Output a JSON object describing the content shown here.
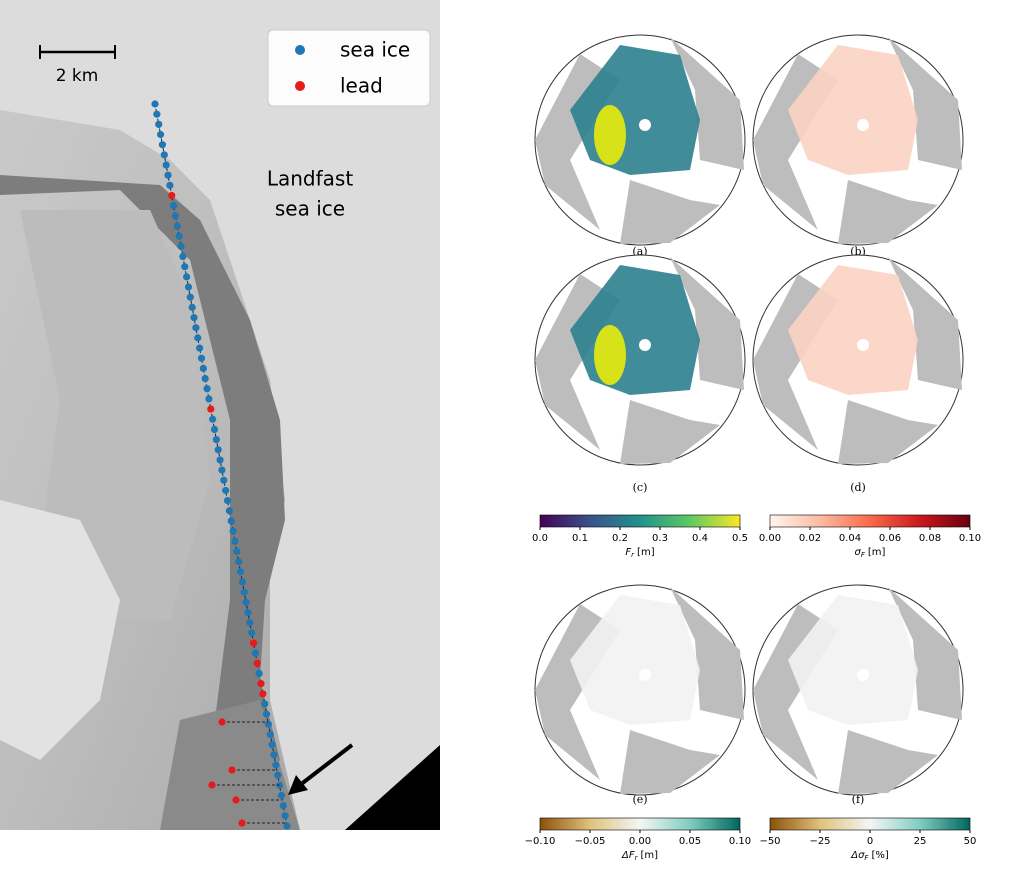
{
  "image_panel": {
    "scale_label": "2 km",
    "legend": [
      "sea ice",
      "lead"
    ],
    "annotation": [
      "Landfast",
      "sea ice"
    ]
  },
  "maps": {
    "panel_labels": [
      "(a)",
      "(b)",
      "(c)",
      "(d)",
      "(e)",
      "(f)"
    ]
  },
  "colorbars": [
    {
      "range": [
        0,
        0.5
      ],
      "ticks": [
        {
          "value": 0,
          "label": "0.0"
        },
        0.1,
        0.2,
        0.3,
        0.4,
        0.5
      ],
      "label": {
        "main": "F",
        "sub": "r",
        "unit": "[m]"
      },
      "colors": [
        "#440154",
        "#3b528b",
        "#21918c",
        "#5ec962",
        "#fde725"
      ]
    },
    {
      "range": [
        0,
        0.1
      ],
      "ticks": [
        {
          "value": 0,
          "label": "0.00"
        },
        0.02,
        0.04,
        0.06,
        0.08,
        {
          "value": 0.1,
          "label": "0.10"
        }
      ],
      "label": {
        "main": "σ",
        "sub": "F",
        "unit": "[m]"
      },
      "colors": [
        "#fff5f0",
        "#fcbba1",
        "#fb6a4a",
        "#cb181d",
        "#67000d"
      ]
    },
    {
      "range": [
        -0.1,
        0.1
      ],
      "ticks": [
        {
          "value": -0.1,
          "label": "−0.10"
        },
        {
          "value": -0.05,
          "label": "−0.05"
        },
        {
          "value": 0,
          "label": "0.00"
        },
        0.05,
        {
          "value": 0.1,
          "label": "0.10"
        }
      ],
      "label": {
        "main": "ΔF",
        "sub": "r",
        "unit": "[m]"
      },
      "colors": [
        "#8c510a",
        "#dfc27d",
        "#f5f5f5",
        "#80cdc1",
        "#01665e"
      ]
    },
    {
      "range": [
        -50,
        50
      ],
      "ticks": [
        {
          "value": -50,
          "label": "−50"
        },
        {
          "value": -25,
          "label": "−25"
        },
        0,
        25,
        50
      ],
      "label": {
        "main": "Δσ",
        "sub": "F",
        "unit": "[%]"
      },
      "colors": [
        "#8c510a",
        "#dfc27d",
        "#f5f5f5",
        "#80cdc1",
        "#01665e"
      ]
    }
  ]
}
